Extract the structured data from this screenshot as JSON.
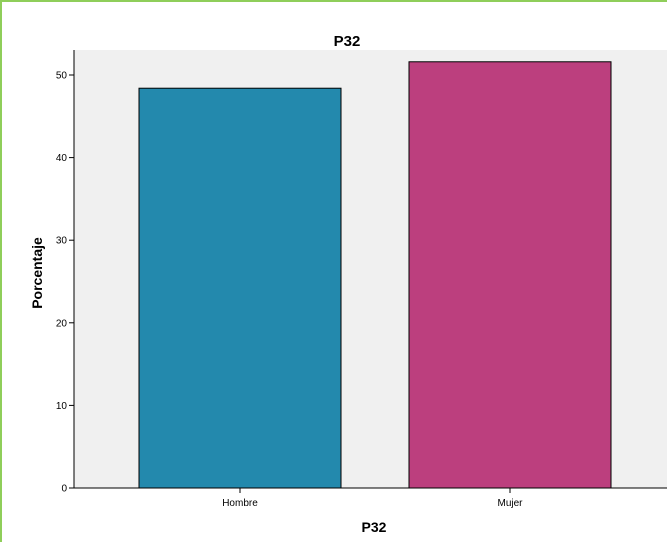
{
  "chart_data": {
    "type": "bar",
    "title": "P32",
    "xlabel": "P32",
    "ylabel": "Porcentaje",
    "categories": [
      "Hombre",
      "Mujer"
    ],
    "values": [
      48.4,
      51.6
    ],
    "ylim": [
      0,
      60
    ],
    "yticks": [
      "0",
      "10",
      "20",
      "30",
      "40",
      "50",
      "60"
    ],
    "colors": [
      "#2389ad",
      "#bc3f7e"
    ],
    "plot_background": "#f0f0f0",
    "grid": false,
    "legend": "none"
  }
}
